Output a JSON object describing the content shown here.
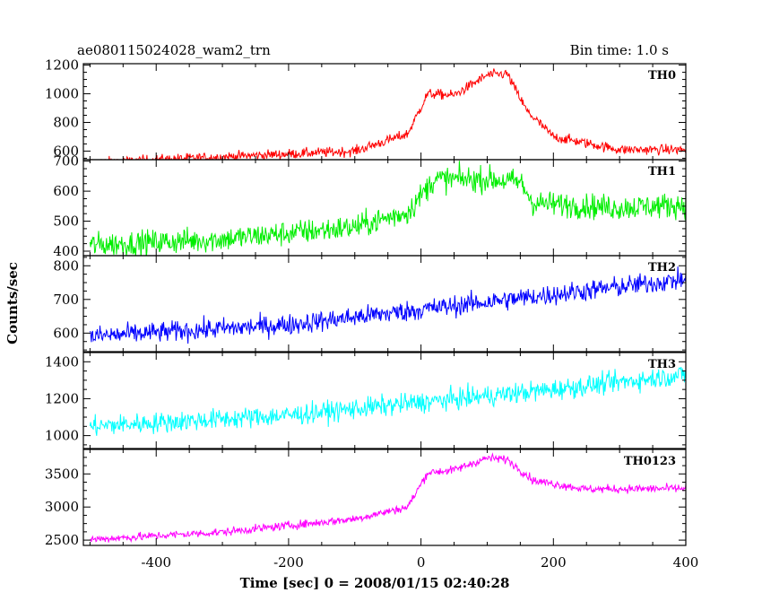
{
  "chart_data": {
    "type": "line",
    "title": "ae080115024028_wam2_trn",
    "bin_time": "Bin time: 1.0 s",
    "xlabel": "Time [sec] 0 = 2008/01/15 02:40:28",
    "ylabel": "Counts/sec",
    "x_range": [
      -510,
      400
    ],
    "x_ticks": [
      -400,
      -200,
      0,
      200,
      400
    ],
    "panels": [
      {
        "name": "TH0",
        "color": "#ff0000",
        "ylim": [
          540,
          1210
        ],
        "y_ticks": [
          600,
          800,
          1000,
          1200
        ],
        "noise": 25,
        "profile": [
          [
            -500,
            520
          ],
          [
            -300,
            560
          ],
          [
            -100,
            600
          ],
          [
            -20,
            720
          ],
          [
            10,
            1000
          ],
          [
            50,
            990
          ],
          [
            100,
            1130
          ],
          [
            130,
            1140
          ],
          [
            160,
            880
          ],
          [
            200,
            700
          ],
          [
            300,
            610
          ],
          [
            400,
            610
          ]
        ]
      },
      {
        "name": "TH1",
        "color": "#00ee00",
        "ylim": [
          385,
          705
        ],
        "y_ticks": [
          400,
          500,
          600,
          700
        ],
        "noise": 30,
        "profile": [
          [
            -500,
            420
          ],
          [
            -300,
            440
          ],
          [
            -100,
            480
          ],
          [
            -20,
            530
          ],
          [
            20,
            640
          ],
          [
            100,
            640
          ],
          [
            150,
            630
          ],
          [
            170,
            560
          ],
          [
            300,
            545
          ],
          [
            400,
            555
          ]
        ]
      },
      {
        "name": "TH2",
        "color": "#0000ff",
        "ylim": [
          545,
          830
        ],
        "y_ticks": [
          600,
          700,
          800
        ],
        "noise": 22,
        "profile": [
          [
            -500,
            590
          ],
          [
            -200,
            625
          ],
          [
            0,
            670
          ],
          [
            200,
            715
          ],
          [
            400,
            760
          ]
        ]
      },
      {
        "name": "TH3",
        "color": "#00ffff",
        "ylim": [
          930,
          1450
        ],
        "y_ticks": [
          1000,
          1200,
          1400
        ],
        "noise": 40,
        "profile": [
          [
            -500,
            1050
          ],
          [
            -200,
            1110
          ],
          [
            0,
            1180
          ],
          [
            200,
            1250
          ],
          [
            400,
            1330
          ]
        ]
      },
      {
        "name": "TH0123",
        "color": "#ff00ff",
        "ylim": [
          2420,
          3870
        ],
        "y_ticks": [
          2500,
          3000,
          3500
        ],
        "noise": 45,
        "profile": [
          [
            -500,
            2510
          ],
          [
            -300,
            2620
          ],
          [
            -100,
            2820
          ],
          [
            -20,
            3000
          ],
          [
            10,
            3520
          ],
          [
            50,
            3560
          ],
          [
            100,
            3740
          ],
          [
            130,
            3720
          ],
          [
            170,
            3400
          ],
          [
            250,
            3270
          ],
          [
            400,
            3280
          ]
        ]
      }
    ]
  }
}
